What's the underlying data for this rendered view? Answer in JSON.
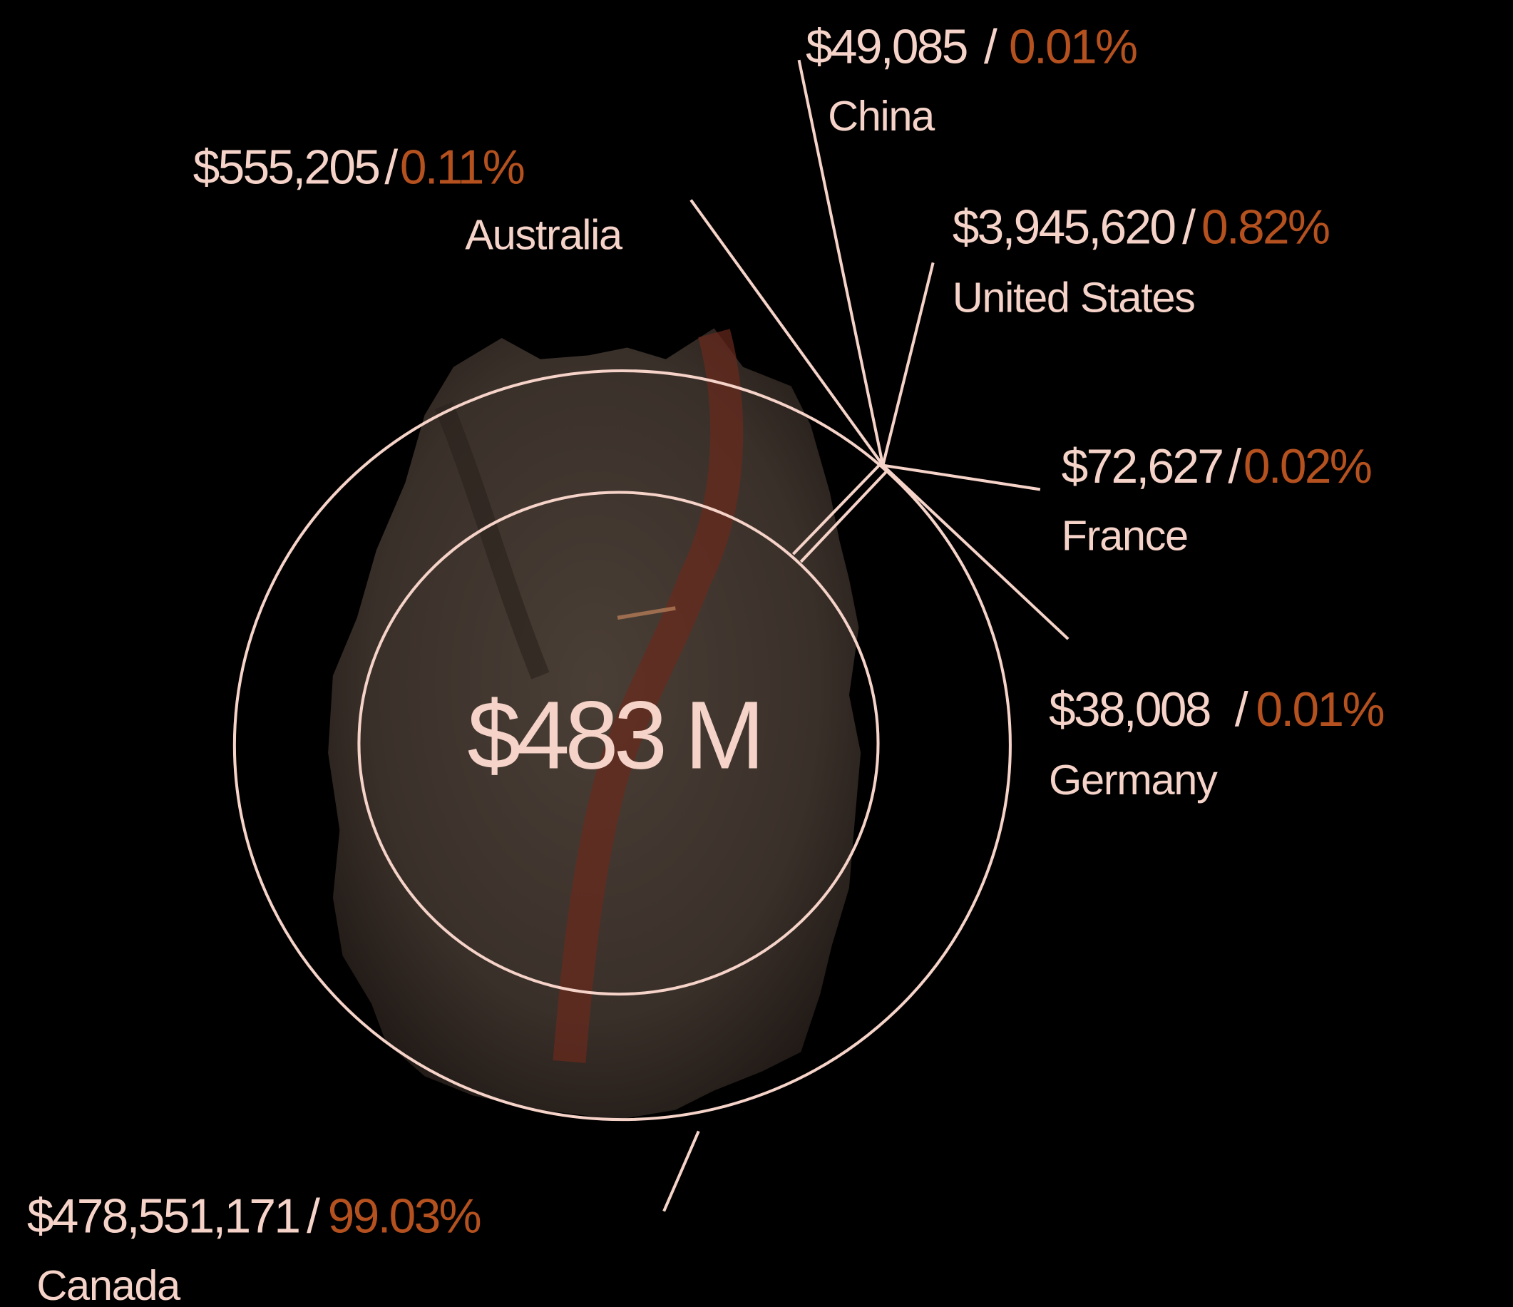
{
  "total": "$483 M",
  "separator": "/",
  "items": [
    {
      "amount": "$49,085",
      "share": "0.01%",
      "country": "China"
    },
    {
      "amount": "$555,205",
      "share": "0.11%",
      "country": "Australia"
    },
    {
      "amount": "$3,945,620",
      "share": "0.82%",
      "country": "United States"
    },
    {
      "amount": "$72,627",
      "share": "0.02%",
      "country": "France"
    },
    {
      "amount": "$38,008",
      "share": "0.01%",
      "country": "Germany"
    },
    {
      "amount": "$478,551,171",
      "share": "99.03%",
      "country": "Canada"
    }
  ]
}
